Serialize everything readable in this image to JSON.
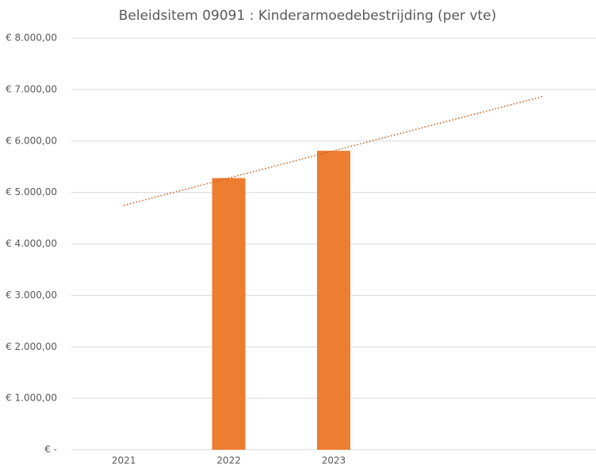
{
  "chart_data": {
    "type": "bar",
    "title": "Beleidsitem 09091 : Kinderarmoedebestrijding (per vte)",
    "categories": [
      "2021",
      "2022",
      "2023",
      null,
      null
    ],
    "values": [
      null,
      5280,
      5810,
      null,
      null
    ],
    "color": "#ed7d31",
    "trendline": {
      "type": "linear",
      "color": "#c55a11",
      "style": "dotted"
    },
    "ylim": [
      0,
      8000
    ],
    "yticks": [
      {
        "value": 0,
        "label": "€ -"
      },
      {
        "value": 1000,
        "label": "€ 1.000,00"
      },
      {
        "value": 2000,
        "label": "€ 2.000,00"
      },
      {
        "value": 3000,
        "label": "€ 3.000,00"
      },
      {
        "value": 4000,
        "label": "€ 4.000,00"
      },
      {
        "value": 5000,
        "label": "€ 5.000,00"
      },
      {
        "value": 6000,
        "label": "€ 6.000,00"
      },
      {
        "value": 7000,
        "label": "€ 7.000,00"
      },
      {
        "value": 8000,
        "label": "€ 8.000,00"
      }
    ],
    "grid": true
  }
}
